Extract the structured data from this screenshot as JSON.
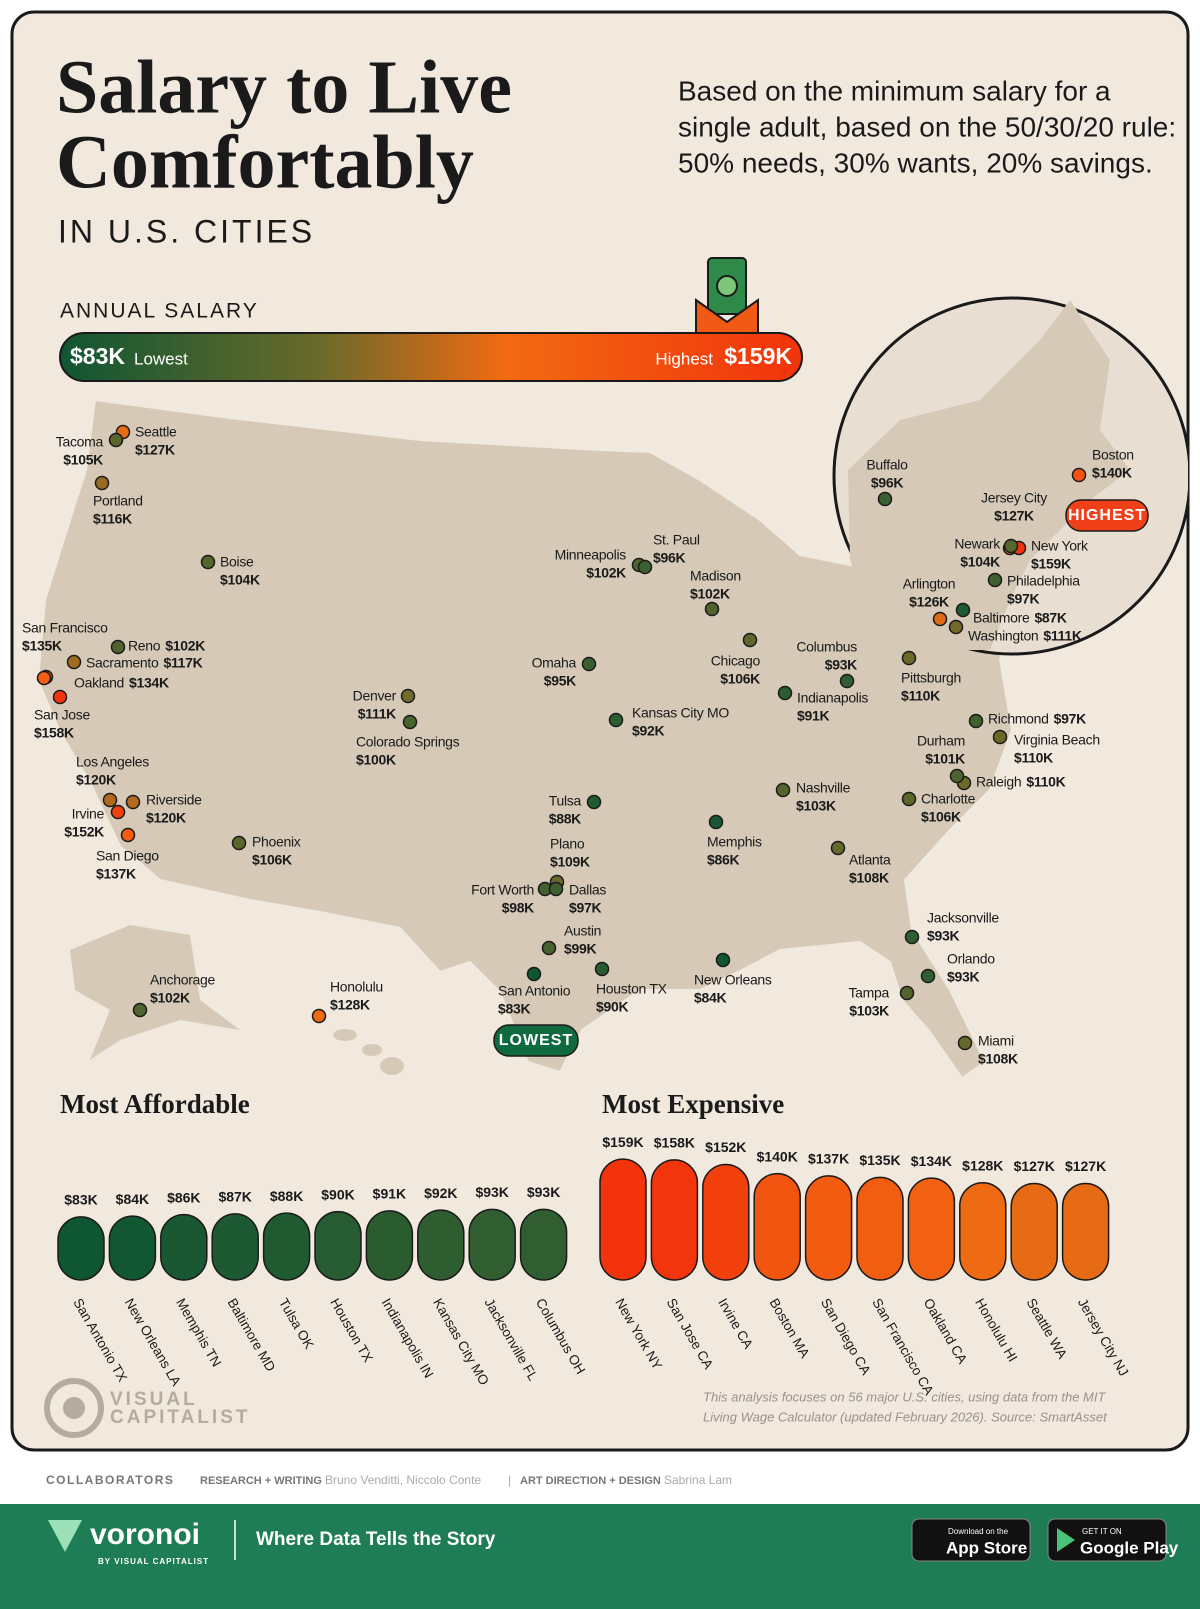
{
  "header": {
    "title": [
      "Salary to Live",
      "Comfortably"
    ],
    "kicker": "IN U.S. CITIES",
    "subtitle": [
      "Based on the minimum salary for a",
      "single adult, based on the 50/30/20 rule:",
      "50% needs, 30% wants, 20% savings."
    ]
  },
  "legend": {
    "title": "ANNUAL SALARY",
    "low": {
      "value": 83,
      "label": "$83K",
      "text": "Lowest"
    },
    "high": {
      "value": 159,
      "label": "$159K",
      "text": "Highest"
    }
  },
  "map": {
    "highest_tag": "HIGHEST",
    "lowest_tag": "LOWEST",
    "cities": [
      {
        "name": "Seattle",
        "value": 127,
        "label": "$127K"
      },
      {
        "name": "Tacoma",
        "value": 105,
        "label": "$105K"
      },
      {
        "name": "Portland",
        "value": 116,
        "label": "$116K"
      },
      {
        "name": "Boise",
        "value": 104,
        "label": "$104K"
      },
      {
        "name": "San Francisco",
        "value": 135,
        "label": "$135K"
      },
      {
        "name": "Reno",
        "value": 102,
        "label": "$102K"
      },
      {
        "name": "Sacramento",
        "value": 117,
        "label": "$117K"
      },
      {
        "name": "Oakland",
        "value": 134,
        "label": "$134K"
      },
      {
        "name": "San Jose",
        "value": 158,
        "label": "$158K"
      },
      {
        "name": "Los Angeles",
        "value": 120,
        "label": "$120K"
      },
      {
        "name": "Riverside",
        "value": 120,
        "label": "$120K"
      },
      {
        "name": "Irvine",
        "value": 152,
        "label": "$152K"
      },
      {
        "name": "San Diego",
        "value": 137,
        "label": "$137K"
      },
      {
        "name": "Phoenix",
        "value": 106,
        "label": "$106K"
      },
      {
        "name": "Denver",
        "value": 111,
        "label": "$111K"
      },
      {
        "name": "Colorado Springs",
        "value": 100,
        "label": "$100K"
      },
      {
        "name": "Omaha",
        "value": 95,
        "label": "$95K"
      },
      {
        "name": "Kansas City MO",
        "value": 92,
        "label": "$92K"
      },
      {
        "name": "Minneapolis",
        "value": 102,
        "label": "$102K"
      },
      {
        "name": "St. Paul",
        "value": 96,
        "label": "$96K"
      },
      {
        "name": "Madison",
        "value": 102,
        "label": "$102K"
      },
      {
        "name": "Chicago",
        "value": 106,
        "label": "$106K"
      },
      {
        "name": "Columbus",
        "value": 93,
        "label": "$93K"
      },
      {
        "name": "Indianapolis",
        "value": 91,
        "label": "$91K"
      },
      {
        "name": "Tulsa",
        "value": 88,
        "label": "$88K"
      },
      {
        "name": "Plano",
        "value": 109,
        "label": "$109K"
      },
      {
        "name": "Fort Worth",
        "value": 98,
        "label": "$98K"
      },
      {
        "name": "Dallas",
        "value": 97,
        "label": "$97K"
      },
      {
        "name": "Austin",
        "value": 99,
        "label": "$99K"
      },
      {
        "name": "San Antonio",
        "value": 83,
        "label": "$83K"
      },
      {
        "name": "Houston TX",
        "value": 90,
        "label": "$90K"
      },
      {
        "name": "New Orleans",
        "value": 84,
        "label": "$84K"
      },
      {
        "name": "Memphis",
        "value": 86,
        "label": "$86K"
      },
      {
        "name": "Nashville",
        "value": 103,
        "label": "$103K"
      },
      {
        "name": "Atlanta",
        "value": 108,
        "label": "$108K"
      },
      {
        "name": "Charlotte",
        "value": 106,
        "label": "$106K"
      },
      {
        "name": "Raleigh",
        "value": 110,
        "label": "$110K"
      },
      {
        "name": "Durham",
        "value": 101,
        "label": "$101K"
      },
      {
        "name": "Virginia Beach",
        "value": 110,
        "label": "$110K"
      },
      {
        "name": "Richmond",
        "value": 97,
        "label": "$97K"
      },
      {
        "name": "Pittsburgh",
        "value": 110,
        "label": "$110K"
      },
      {
        "name": "Jacksonville",
        "value": 93,
        "label": "$93K"
      },
      {
        "name": "Orlando",
        "value": 93,
        "label": "$93K"
      },
      {
        "name": "Tampa",
        "value": 103,
        "label": "$103K"
      },
      {
        "name": "Miami",
        "value": 108,
        "label": "$108K"
      },
      {
        "name": "Honolulu",
        "value": 128,
        "label": "$128K"
      },
      {
        "name": "Anchorage",
        "value": 102,
        "label": "$102K"
      },
      {
        "name": "Buffalo",
        "value": 96,
        "label": "$96K"
      },
      {
        "name": "Boston",
        "value": 140,
        "label": "$140K"
      },
      {
        "name": "Jersey City",
        "value": 127,
        "label": "$127K"
      },
      {
        "name": "New York",
        "value": 159,
        "label": "$159K"
      },
      {
        "name": "Newark",
        "value": 104,
        "label": "$104K"
      },
      {
        "name": "Philadelphia",
        "value": 97,
        "label": "$97K"
      },
      {
        "name": "Arlington",
        "value": 126,
        "label": "$126K"
      },
      {
        "name": "Baltimore",
        "value": 87,
        "label": "$87K"
      },
      {
        "name": "Washington",
        "value": 111,
        "label": "$111K"
      }
    ]
  },
  "chart_data": [
    {
      "type": "bar",
      "title": "Most Affordable",
      "categories": [
        "San Antonio TX",
        "New Orleans LA",
        "Memphis TN",
        "Baltimore MD",
        "Tulsa OK",
        "Houston TX",
        "Indianapolis IN",
        "Kansas City MO",
        "Jacksonville FL",
        "Columbus OH"
      ],
      "values": [
        83,
        84,
        86,
        87,
        88,
        90,
        91,
        92,
        93,
        93
      ],
      "value_labels": [
        "$83K",
        "$84K",
        "$86K",
        "$87K",
        "$88K",
        "$90K",
        "$91K",
        "$92K",
        "$93K",
        "$93K"
      ]
    },
    {
      "type": "bar",
      "title": "Most Expensive",
      "categories": [
        "New York NY",
        "San Jose CA",
        "Irvine CA",
        "Boston MA",
        "San Diego CA",
        "San Francisco CA",
        "Oakland CA",
        "Honolulu HI",
        "Seattle WA",
        "Jersey City NJ"
      ],
      "values": [
        159,
        158,
        152,
        140,
        137,
        135,
        134,
        128,
        127,
        127
      ],
      "value_labels": [
        "$159K",
        "$158K",
        "$152K",
        "$140K",
        "$137K",
        "$135K",
        "$134K",
        "$128K",
        "$127K",
        "$127K"
      ]
    }
  ],
  "note": [
    "This analysis focuses on 56 major U.S. cities, using data from the MIT",
    "Living Wage Calculator (updated February 2026). Source: SmartAsset"
  ],
  "logo": [
    "VISUAL",
    "CAPITALIST"
  ],
  "credits": {
    "label": "COLLABORATORS",
    "research_role": "RESEARCH + WRITING",
    "research_names": "Bruno Venditti, Niccolo Conte",
    "separator": "|",
    "design_role": "ART DIRECTION + DESIGN",
    "design_names": "Sabrina Lam"
  },
  "footer": {
    "brand": "voronoi",
    "brand_sub": "BY VISUAL CAPITALIST",
    "tagline": "Where Data Tells the Story",
    "app_store": [
      "Download on the",
      "App Store"
    ],
    "google_play": [
      "GET IT ON",
      "Google Play"
    ]
  }
}
